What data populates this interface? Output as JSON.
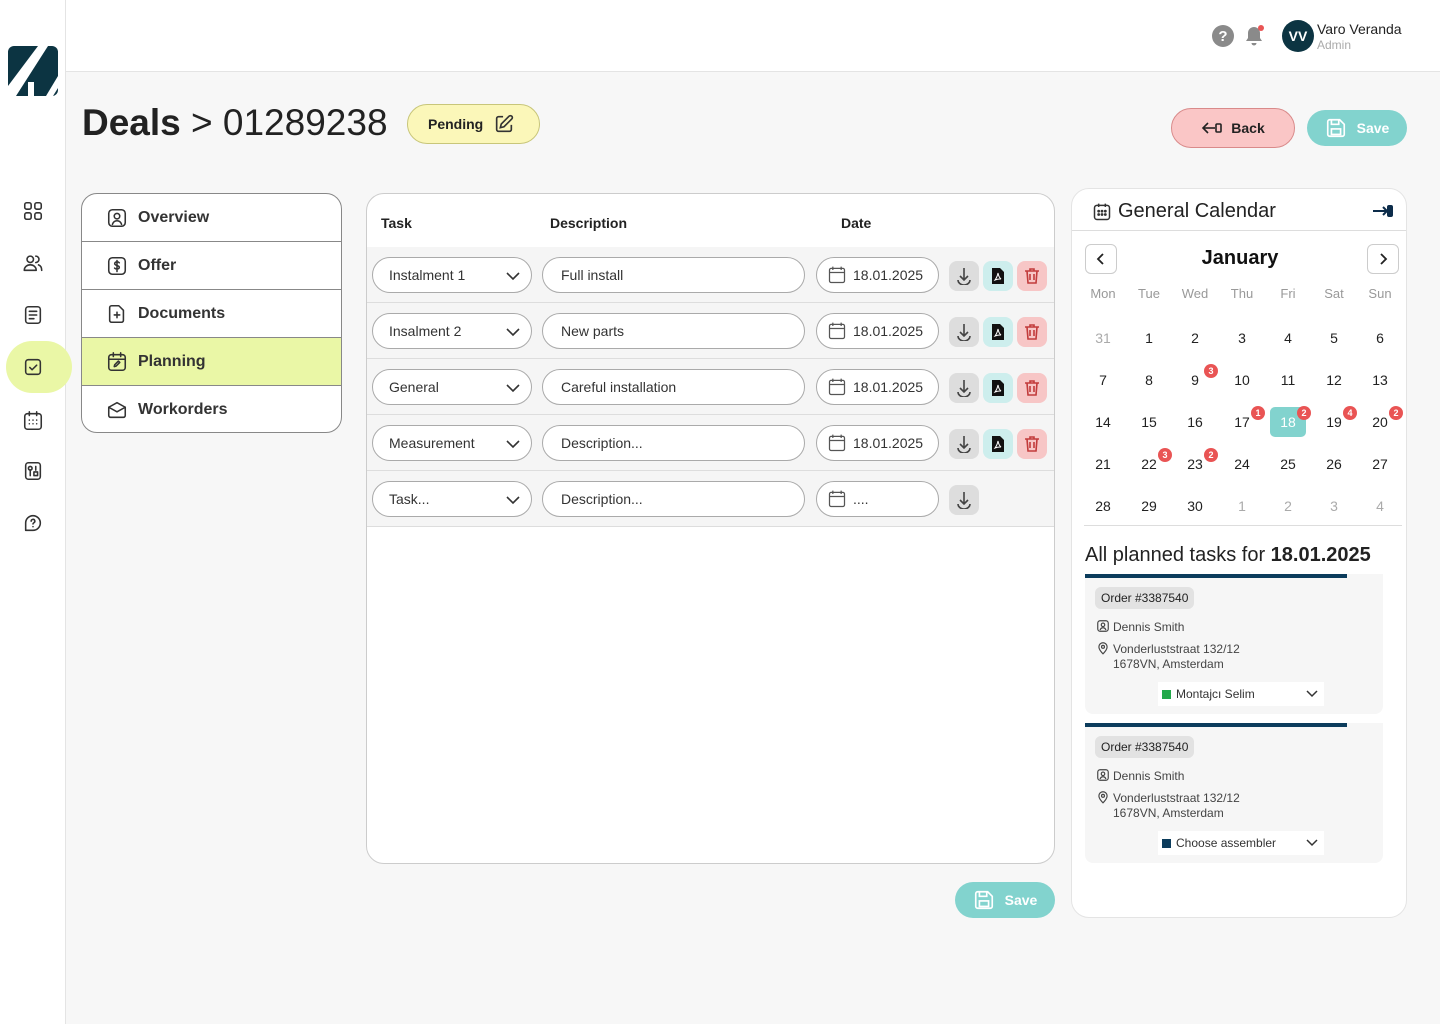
{
  "user": {
    "initials": "VV",
    "name": "Varo Veranda",
    "role": "Admin"
  },
  "breadcrumb": {
    "section": "Deals",
    "separator": ">",
    "deal_id": "01289238"
  },
  "status": {
    "label": "Pending",
    "color": "#fbf7b9"
  },
  "buttons": {
    "back": "Back",
    "save": "Save"
  },
  "sidebar": {
    "items": [
      {
        "name": "dashboard-icon"
      },
      {
        "name": "users-icon"
      },
      {
        "name": "document-list-icon"
      },
      {
        "name": "planning-check-icon",
        "active": true
      },
      {
        "name": "calendar-icon"
      },
      {
        "name": "tools-icon"
      },
      {
        "name": "support-icon"
      }
    ]
  },
  "tabs": [
    {
      "label": "Overview",
      "icon": "user-icon"
    },
    {
      "label": "Offer",
      "icon": "dollar-icon"
    },
    {
      "label": "Documents",
      "icon": "document-plus-icon"
    },
    {
      "label": "Planning",
      "icon": "calendar-edit-icon",
      "active": true
    },
    {
      "label": "Workorders",
      "icon": "box-icon"
    }
  ],
  "task_table": {
    "headers": {
      "task": "Task",
      "description": "Description",
      "date": "Date"
    },
    "rows": [
      {
        "task": "Instalment 1",
        "description": "Full install",
        "date": "18.01.2025",
        "actions": true
      },
      {
        "task": "Insalment 2",
        "description": "New parts",
        "date": "18.01.2025",
        "actions": true
      },
      {
        "task": "General",
        "description": "Careful installation",
        "date": "18.01.2025",
        "actions": true
      },
      {
        "task": "Measurement",
        "description": "Description...",
        "date": "18.01.2025",
        "actions": true
      },
      {
        "task": "Task...",
        "description": "Description...",
        "date": "....",
        "actions": false
      }
    ]
  },
  "calendar": {
    "title": "General Calendar",
    "month": "January",
    "weekdays": [
      "Mon",
      "Tue",
      "Wed",
      "Thu",
      "Fri",
      "Sat",
      "Sun"
    ],
    "weeks": [
      [
        {
          "d": "31",
          "muted": true
        },
        {
          "d": "1"
        },
        {
          "d": "2"
        },
        {
          "d": "3"
        },
        {
          "d": "4"
        },
        {
          "d": "5"
        },
        {
          "d": "6"
        }
      ],
      [
        {
          "d": "7"
        },
        {
          "d": "8"
        },
        {
          "d": "9",
          "count": "3"
        },
        {
          "d": "10"
        },
        {
          "d": "11"
        },
        {
          "d": "12"
        },
        {
          "d": "13"
        }
      ],
      [
        {
          "d": "14"
        },
        {
          "d": "15"
        },
        {
          "d": "16"
        },
        {
          "d": "17",
          "count": "1"
        },
        {
          "d": "18",
          "count": "2",
          "selected": true
        },
        {
          "d": "19",
          "count": "4"
        },
        {
          "d": "20",
          "count": "2"
        }
      ],
      [
        {
          "d": "21"
        },
        {
          "d": "22",
          "count": "3"
        },
        {
          "d": "23",
          "count": "2"
        },
        {
          "d": "24"
        },
        {
          "d": "25"
        },
        {
          "d": "26"
        },
        {
          "d": "27"
        }
      ],
      [
        {
          "d": "28"
        },
        {
          "d": "29"
        },
        {
          "d": "30"
        },
        {
          "d": "1",
          "muted": true
        },
        {
          "d": "2",
          "muted": true
        },
        {
          "d": "3",
          "muted": true
        },
        {
          "d": "4",
          "muted": true
        }
      ]
    ],
    "planned_prefix": "All planned tasks for",
    "planned_date": "18.01.2025",
    "orders": [
      {
        "order": "Order #3387540",
        "customer": "Dennis Smith",
        "address1": "Vonderluststraat 132/12",
        "address2": "1678VN, Amsterdam",
        "assembler": "Montajcı Selim",
        "assembler_color": "#22a84a"
      },
      {
        "order": "Order #3387540",
        "customer": "Dennis Smith",
        "address1": "Vonderluststraat 132/12",
        "address2": "1678VN, Amsterdam",
        "assembler": "Choose assembler",
        "assembler_color": "#0c3c5c"
      }
    ]
  },
  "colors": {
    "accent": "#82d3ce",
    "active_bg": "#eaf7a6",
    "brand": "#0c3442",
    "danger_bg": "#fac6c6"
  }
}
